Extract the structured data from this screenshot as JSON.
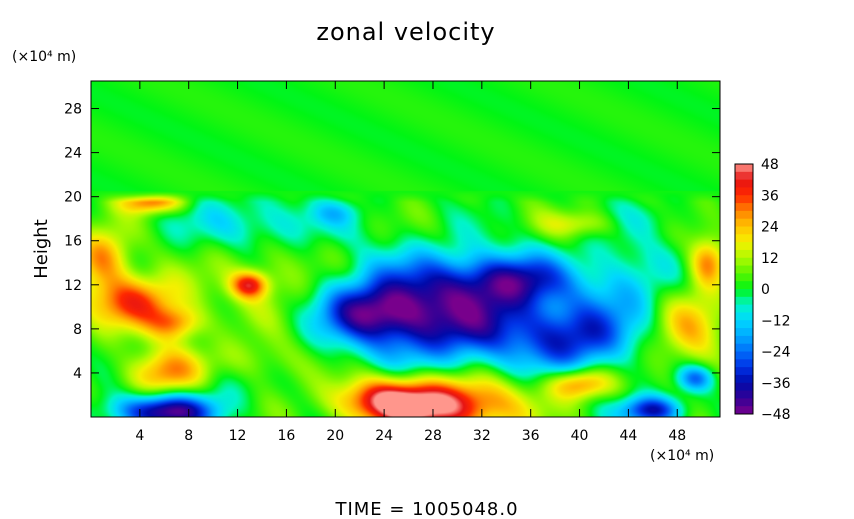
{
  "chart_data": {
    "type": "heatmap",
    "title": "zonal velocity",
    "xlabel": "",
    "ylabel": "Height",
    "x_unit": "(×10⁴ m)",
    "y_unit": "(×10⁴ m)",
    "xlim": [
      0,
      51.5
    ],
    "ylim": [
      0,
      30.5
    ],
    "x_ticks": [
      4,
      8,
      12,
      16,
      20,
      24,
      28,
      32,
      36,
      40,
      44,
      48
    ],
    "y_ticks": [
      4,
      8,
      12,
      16,
      20,
      24,
      28
    ],
    "x_tick_labels": [
      "4",
      "8",
      "12",
      "16",
      "20",
      "24",
      "28",
      "32",
      "36",
      "40",
      "44",
      "48"
    ],
    "y_tick_labels": [
      "4",
      "8",
      "12",
      "16",
      "20",
      "24",
      "28"
    ],
    "colorbar": {
      "min": -48,
      "max": 48,
      "labels": [
        "48",
        "36",
        "24",
        "12",
        "0",
        "−12",
        "−24",
        "−36",
        "−48"
      ],
      "values": [
        48,
        36,
        24,
        12,
        0,
        -12,
        -24,
        -36,
        -48
      ]
    },
    "footer": "TIME = 1005048.0",
    "regions": [
      {
        "x": 30,
        "y": 8,
        "rx": 9,
        "ry": 3.5,
        "v": -34
      },
      {
        "x": 29,
        "y": 12,
        "rx": 8,
        "ry": 3.2,
        "v": -28
      },
      {
        "x": 23,
        "y": 9.5,
        "rx": 4.2,
        "ry": 2.4,
        "v": -28
      },
      {
        "x": 35,
        "y": 12.5,
        "rx": 4,
        "ry": 2.2,
        "v": -24
      },
      {
        "x": 40,
        "y": 7,
        "rx": 4,
        "ry": 3,
        "v": -26
      },
      {
        "x": 44,
        "y": 12,
        "rx": 4,
        "ry": 4,
        "v": -14
      },
      {
        "x": 14,
        "y": 17.5,
        "rx": 6,
        "ry": 2.5,
        "v": -16
      },
      {
        "x": 6,
        "y": 0.5,
        "rx": 4,
        "ry": 1.6,
        "v": -48
      },
      {
        "x": 46,
        "y": 0.6,
        "rx": 2.5,
        "ry": 1.3,
        "v": -38
      },
      {
        "x": 29,
        "y": 1,
        "rx": 6,
        "ry": 2.5,
        "v": 44
      },
      {
        "x": 24,
        "y": 1.5,
        "rx": 4,
        "ry": 2,
        "v": 30
      },
      {
        "x": 3.5,
        "y": 10.5,
        "rx": 4,
        "ry": 2.5,
        "v": 32
      },
      {
        "x": 1,
        "y": 14.5,
        "rx": 2.2,
        "ry": 2.5,
        "v": 26
      },
      {
        "x": 6,
        "y": 4,
        "rx": 3,
        "ry": 2.2,
        "v": 28
      },
      {
        "x": 7,
        "y": 8.5,
        "rx": 2.2,
        "ry": 1.5,
        "v": 24
      },
      {
        "x": 40,
        "y": 3,
        "rx": 2.5,
        "ry": 1.4,
        "v": 30
      },
      {
        "x": 13,
        "y": 12,
        "rx": 1.5,
        "ry": 1.2,
        "v": 34
      },
      {
        "x": 5,
        "y": 19.5,
        "rx": 2.5,
        "ry": 1.0,
        "v": 30
      },
      {
        "x": 15,
        "y": 13,
        "rx": 5,
        "ry": 5,
        "v": 10
      },
      {
        "x": 14,
        "y": 5,
        "rx": 4,
        "ry": 2.2,
        "v": 10
      },
      {
        "x": 49,
        "y": 8,
        "rx": 3,
        "ry": 4,
        "v": 20
      },
      {
        "x": 50.5,
        "y": 14,
        "rx": 1.5,
        "ry": 2.2,
        "v": 28
      },
      {
        "x": 11,
        "y": 3,
        "rx": 3,
        "ry": 2,
        "v": -6
      },
      {
        "x": 49.5,
        "y": 3.5,
        "rx": 1.5,
        "ry": 1.2,
        "v": -26
      },
      {
        "x": 20,
        "y": 18.5,
        "rx": 2,
        "ry": 1.0,
        "v": -8
      },
      {
        "x": 46,
        "y": 18,
        "rx": 3,
        "ry": 1.5,
        "v": -6
      },
      {
        "x": 40,
        "y": 17.5,
        "rx": 3,
        "ry": 1.2,
        "v": 14
      }
    ]
  }
}
